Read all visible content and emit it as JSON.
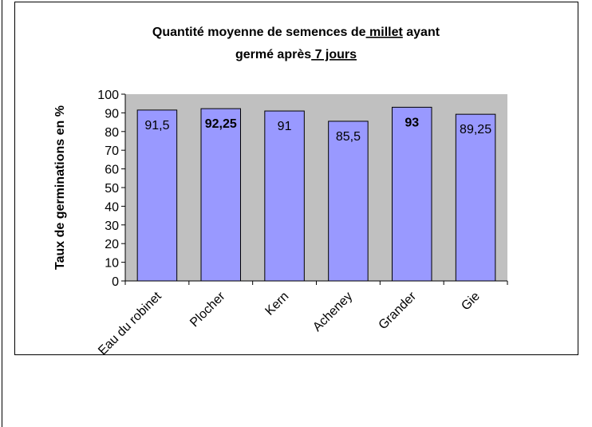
{
  "chart_data": {
    "type": "bar",
    "title": [
      "Quantité moyenne de semences de",
      "millet",
      "ayant",
      "germé après",
      "7 jours"
    ],
    "title_underlined": [
      1,
      4
    ],
    "ylabel": "Taux de germinations en %",
    "categories": [
      "Eau du robinet",
      "Plocher",
      "Kern",
      "Acheney",
      "Grander",
      "Gie"
    ],
    "values": [
      91.5,
      92.25,
      91,
      85.5,
      93,
      89.25
    ],
    "value_labels": [
      "91,5",
      "92,25",
      "91",
      "85,5",
      "93",
      "89,25"
    ],
    "bold_labels": [
      1,
      4
    ],
    "color": "#9999ff",
    "plot_background": "#c0c0c0",
    "ylim": [
      0,
      100
    ],
    "yticks": [
      0,
      10,
      20,
      30,
      40,
      50,
      60,
      70,
      80,
      90,
      100
    ]
  }
}
